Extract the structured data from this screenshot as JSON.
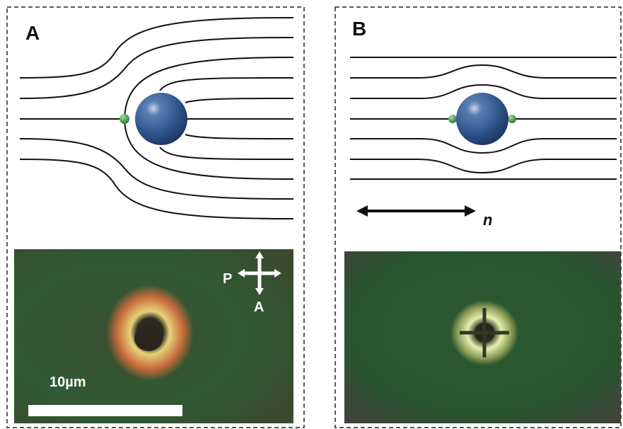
{
  "panels": [
    {
      "label": "A",
      "micrograph": {
        "polarizer": "P",
        "analyzer": "A",
        "scale_bar": "10µm"
      }
    },
    {
      "label": "B",
      "director": "n"
    }
  ]
}
